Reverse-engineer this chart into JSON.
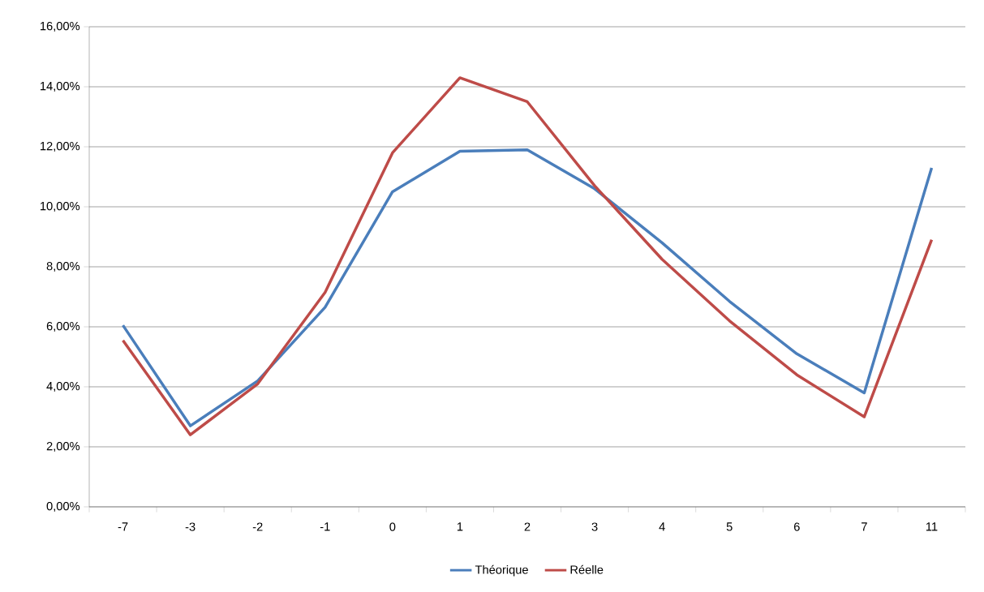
{
  "chart_data": {
    "type": "line",
    "categories": [
      "-7",
      "-3",
      "-2",
      "-1",
      "0",
      "1",
      "2",
      "3",
      "4",
      "5",
      "6",
      "7",
      "11"
    ],
    "series": [
      {
        "name": "Théorique",
        "color": "#4a7ebb",
        "values": [
          6.05,
          2.7,
          4.2,
          6.65,
          10.5,
          11.85,
          11.9,
          10.6,
          8.8,
          6.85,
          5.1,
          3.8,
          11.3
        ]
      },
      {
        "name": "Réelle",
        "color": "#be4b48",
        "values": [
          5.55,
          2.4,
          4.1,
          7.15,
          11.8,
          14.3,
          13.5,
          10.7,
          8.25,
          6.2,
          4.4,
          3.0,
          8.9
        ]
      }
    ],
    "ylim": [
      0,
      16
    ],
    "yticks": [
      {
        "value": 0,
        "label": "0,00%"
      },
      {
        "value": 2,
        "label": "2,00%"
      },
      {
        "value": 4,
        "label": "4,00%"
      },
      {
        "value": 6,
        "label": "6,00%"
      },
      {
        "value": 8,
        "label": "8,00%"
      },
      {
        "value": 10,
        "label": "10,00%"
      },
      {
        "value": 12,
        "label": "12,00%"
      },
      {
        "value": 14,
        "label": "14,00%"
      },
      {
        "value": 16,
        "label": "16,00%"
      }
    ],
    "grid": "y",
    "legend": "bottom",
    "marker": "none",
    "line_style": "solid"
  }
}
